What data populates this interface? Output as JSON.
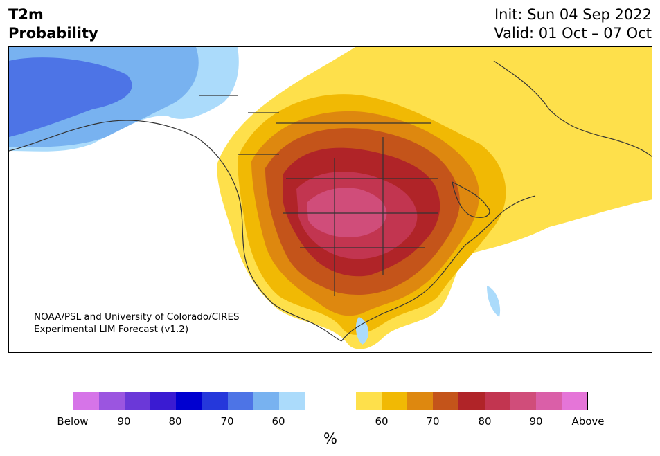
{
  "title": {
    "line1": "T2m",
    "line2": "Probability"
  },
  "init": {
    "label": "Init: Sun 04 Sep 2022",
    "valid": "Valid: 01 Oct – 07 Oct"
  },
  "credit": {
    "line1": "NOAA/PSL and University of Colorado/CIRES",
    "line2": "Experimental LIM Forecast (v1.2)"
  },
  "colorbar": {
    "colors": [
      "#d674e8",
      "#9b55e0",
      "#6b38d8",
      "#3a1bd2",
      "#0000d0",
      "#2538db",
      "#4d74e6",
      "#78b2f0",
      "#abdbfb",
      "#ffffff",
      "#ffffff",
      "#fee04b",
      "#f1b904",
      "#de880f",
      "#c4541a",
      "#b02428",
      "#c23550",
      "#d04d7a",
      "#da5fa8",
      "#e575d8"
    ],
    "ticks": [
      "Below",
      "90",
      "80",
      "70",
      "60",
      "60",
      "70",
      "80",
      "90",
      "Above"
    ],
    "unit": "%"
  },
  "legend_colors": {
    "below_extreme": "#4d74e6",
    "below_light": "#abdbfb",
    "above_light": "#fee04b",
    "above_mid": "#f1b904",
    "above_orange": "#de880f",
    "above_rust": "#c4541a",
    "above_red": "#b02428",
    "above_crimson": "#c23550",
    "above_pink": "#d04d7a"
  }
}
